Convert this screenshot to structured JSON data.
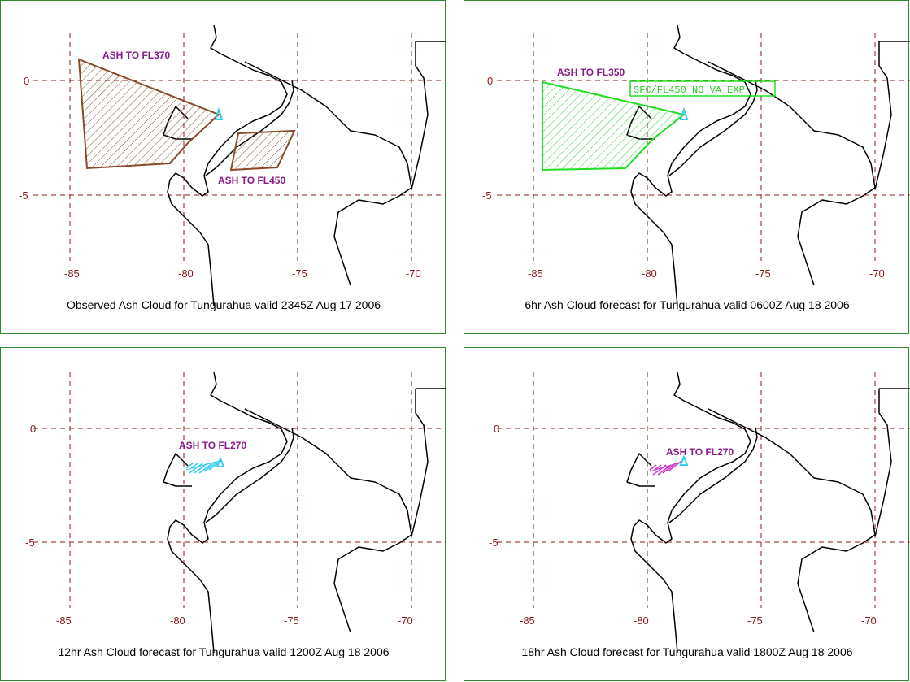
{
  "panels": [
    {
      "caption": "Observed Ash Cloud for Tungurahua valid 2345Z Aug 17 2006",
      "labels": [
        "ASH TO FL370",
        "ASH TO FL450"
      ],
      "label_color": "#8b1a8b",
      "cloud_color": "#8b4a2a"
    },
    {
      "caption": "6hr Ash Cloud forecast for Tungurahua valid 0600Z Aug 18 2006",
      "labels": [
        "ASH TO FL350",
        "SFC/FL450 NO VA EXP"
      ],
      "label_color": "#8b1a8b",
      "cloud_color": "#22dd22"
    },
    {
      "caption": "12hr Ash Cloud forecast for Tungurahua valid 1200Z Aug 18 2006",
      "labels": [
        "ASH TO FL270"
      ],
      "label_color": "#8b1a8b",
      "cloud_color": "#33ccee"
    },
    {
      "caption": "18hr Ash Cloud forecast for Tungurahua valid 1800Z Aug 18 2006",
      "labels": [
        "ASH TO FL270"
      ],
      "label_color": "#8b1a8b",
      "cloud_color": "#cc33cc"
    }
  ],
  "axes": {
    "lon_ticks": [
      "-85",
      "-80",
      "-75",
      "-70"
    ],
    "lat_ticks": [
      "0",
      "-5"
    ]
  },
  "volcano_marker_color": "#33ccee",
  "grid_color": "#8b1a1a"
}
